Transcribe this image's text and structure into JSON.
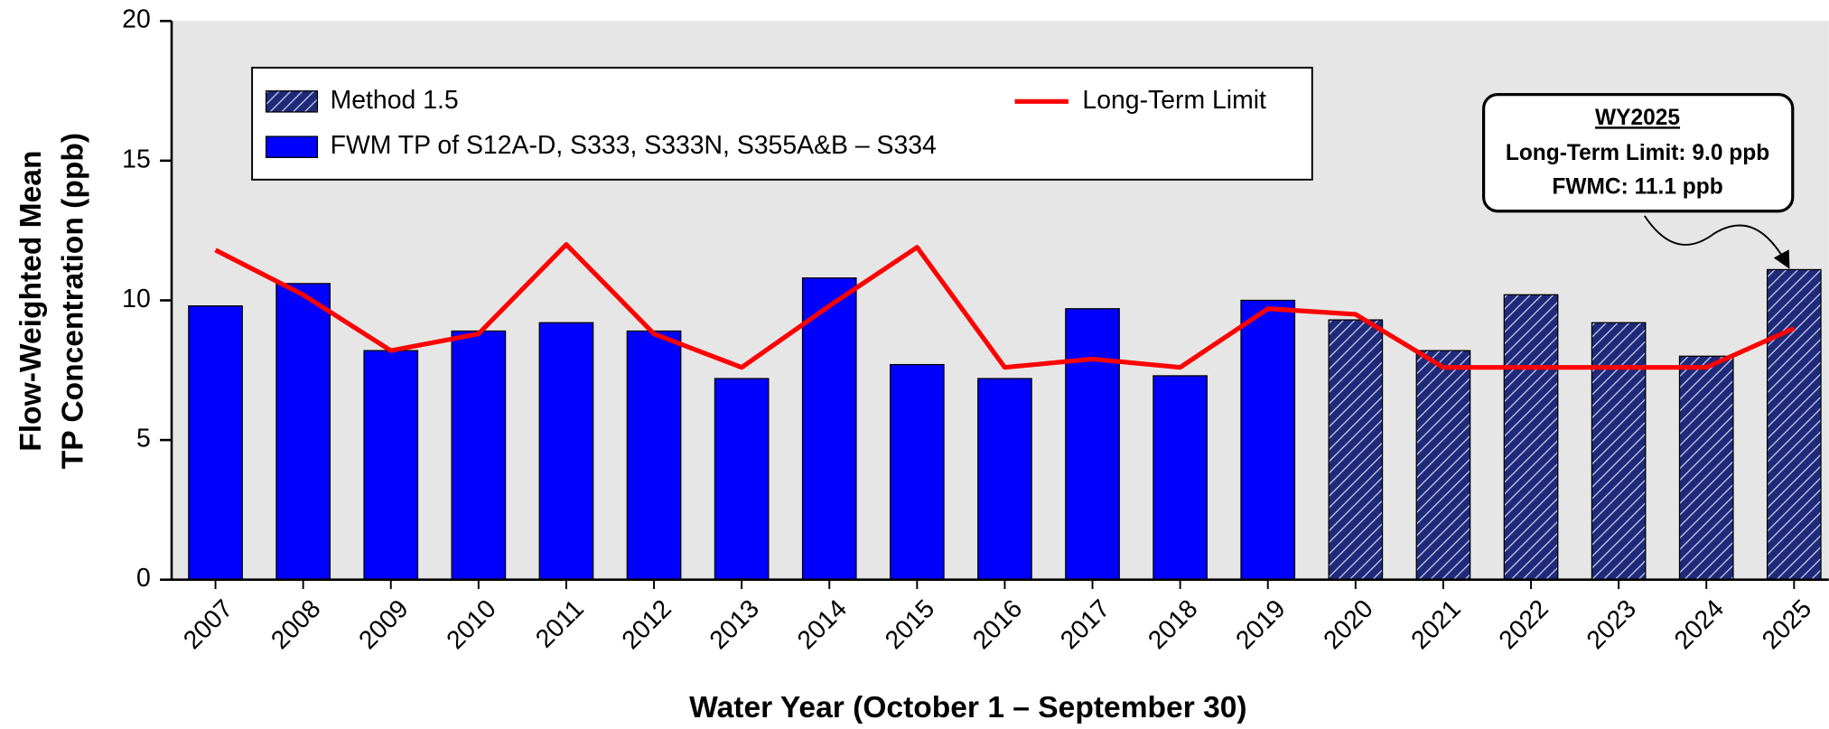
{
  "chart_data": {
    "type": "bar",
    "x_label": "Water Year (October 1 – September 30)",
    "y_label": [
      "Flow-Weighted Mean",
      "TP Concentration (ppb)"
    ],
    "categories": [
      "2007",
      "2008",
      "2009",
      "2010",
      "2011",
      "2012",
      "2013",
      "2014",
      "2015",
      "2016",
      "2017",
      "2018",
      "2019",
      "2020",
      "2021",
      "2022",
      "2023",
      "2024",
      "2025"
    ],
    "series": [
      {
        "name": "Method 1.5",
        "color": "#1f2a7a",
        "hatch": true,
        "values": [
          null,
          null,
          null,
          null,
          null,
          null,
          null,
          null,
          null,
          null,
          null,
          null,
          null,
          9.3,
          8.2,
          10.2,
          9.2,
          8.0,
          11.1
        ]
      },
      {
        "name": "FWM TP of S12A-D, S333, S333N, S355A&B – S334",
        "color": "#0000ff",
        "values": [
          9.8,
          10.6,
          8.2,
          8.9,
          9.2,
          8.9,
          7.2,
          10.8,
          7.7,
          7.2,
          9.7,
          7.3,
          10.0,
          null,
          null,
          null,
          null,
          null,
          null
        ]
      },
      {
        "name": "Long-Term Limit",
        "color": "#ff0000",
        "type": "line",
        "values": [
          11.8,
          10.2,
          8.2,
          8.8,
          12.0,
          8.8,
          7.6,
          9.8,
          11.9,
          7.6,
          7.9,
          7.6,
          9.7,
          9.5,
          7.6,
          7.6,
          7.6,
          7.6,
          9.0
        ]
      }
    ],
    "ylim": [
      0,
      20
    ],
    "yticks": [
      0,
      5,
      10,
      15,
      20
    ],
    "annotation": {
      "title": "WY2025",
      "lines": [
        "Long-Term Limit: 9.0 ppb",
        "FWMC: 11.1 ppb"
      ]
    }
  }
}
